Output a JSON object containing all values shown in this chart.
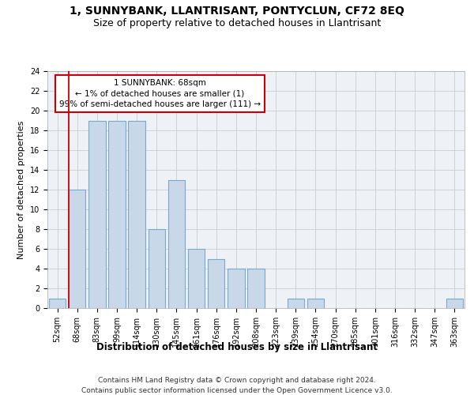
{
  "title1": "1, SUNNYBANK, LLANTRISANT, PONTYCLUN, CF72 8EQ",
  "title2": "Size of property relative to detached houses in Llantrisant",
  "xlabel": "Distribution of detached houses by size in Llantrisant",
  "ylabel": "Number of detached properties",
  "categories": [
    "52sqm",
    "68sqm",
    "83sqm",
    "99sqm",
    "114sqm",
    "130sqm",
    "145sqm",
    "161sqm",
    "176sqm",
    "192sqm",
    "208sqm",
    "223sqm",
    "239sqm",
    "254sqm",
    "270sqm",
    "285sqm",
    "301sqm",
    "316sqm",
    "332sqm",
    "347sqm",
    "363sqm"
  ],
  "values": [
    1,
    12,
    19,
    19,
    19,
    8,
    13,
    6,
    5,
    4,
    4,
    0,
    1,
    1,
    0,
    0,
    0,
    0,
    0,
    0,
    1
  ],
  "bar_color": "#c8d8e8",
  "bar_edge_color": "#7aa8cc",
  "red_line_index": 1,
  "annotation_line1": "1 SUNNYBANK: 68sqm",
  "annotation_line2": "← 1% of detached houses are smaller (1)",
  "annotation_line3": "99% of semi-detached houses are larger (111) →",
  "annotation_box_color": "#ffffff",
  "annotation_box_edge": "#cc0000",
  "ylim": [
    0,
    24
  ],
  "yticks": [
    0,
    2,
    4,
    6,
    8,
    10,
    12,
    14,
    16,
    18,
    20,
    22,
    24
  ],
  "grid_color": "#cccccc",
  "bg_color": "#eef2f7",
  "footer1": "Contains HM Land Registry data © Crown copyright and database right 2024.",
  "footer2": "Contains public sector information licensed under the Open Government Licence v3.0.",
  "title1_fontsize": 10,
  "title2_fontsize": 9,
  "xlabel_fontsize": 8.5,
  "ylabel_fontsize": 8,
  "tick_fontsize": 7,
  "annotation_fontsize": 7.5,
  "footer_fontsize": 6.5
}
